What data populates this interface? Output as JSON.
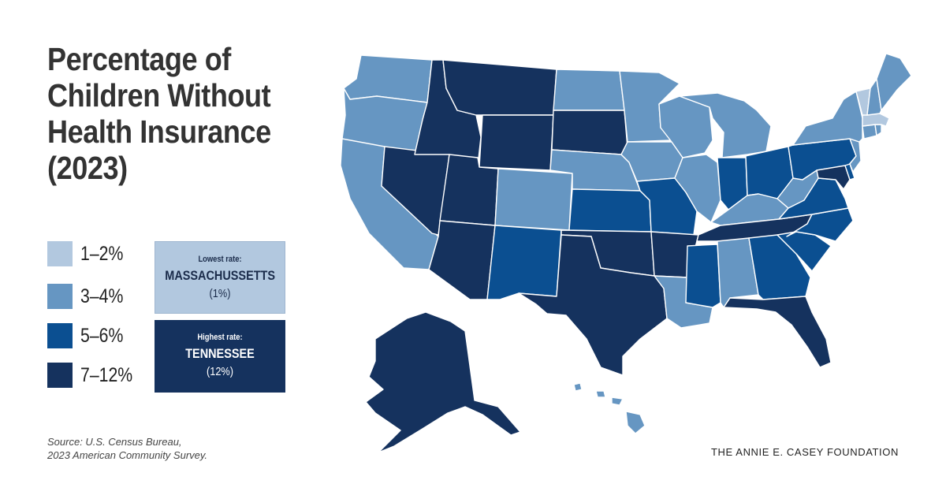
{
  "title": "Percentage of Children Without Health Insurance (2023)",
  "colors": {
    "1-2": "#b2c8df",
    "3-4": "#6696c2",
    "5-6": "#0b4f91",
    "7-12": "#15325e"
  },
  "legend": [
    {
      "label": "1–2%",
      "color": "#b2c8df"
    },
    {
      "label": "3–4%",
      "color": "#6696c2"
    },
    {
      "label": "5–6%",
      "color": "#0b4f91"
    },
    {
      "label": "7–12%",
      "color": "#15325e"
    }
  ],
  "lowest": {
    "caption": "Lowest rate:",
    "state": "MASSACHUSSETTS",
    "value": "(1%)"
  },
  "highest": {
    "caption": "Highest rate:",
    "state": "TENNESSEE",
    "value": "(12%)"
  },
  "source": {
    "line1": "Source: U.S. Census Bureau,",
    "line2": "2023 American Community Survey."
  },
  "foundation": "THE ANNIE E. CASEY FOUNDATION",
  "states": {
    "WA": "3-4",
    "OR": "3-4",
    "CA": "3-4",
    "NV": "7-12",
    "ID": "7-12",
    "MT": "7-12",
    "WY": "7-12",
    "UT": "7-12",
    "AZ": "7-12",
    "CO": "3-4",
    "NM": "5-6",
    "ND": "3-4",
    "SD": "7-12",
    "NE": "3-4",
    "KS": "5-6",
    "OK": "7-12",
    "TX": "7-12",
    "MN": "3-4",
    "IA": "3-4",
    "MO": "5-6",
    "AR": "7-12",
    "LA": "3-4",
    "WI": "3-4",
    "IL": "3-4",
    "MI": "3-4",
    "IN": "5-6",
    "OH": "5-6",
    "KY": "3-4",
    "TN": "7-12",
    "MS": "5-6",
    "AL": "3-4",
    "GA": "5-6",
    "FL": "7-12",
    "SC": "5-6",
    "NC": "5-6",
    "VA": "5-6",
    "WV": "3-4",
    "PA": "5-6",
    "NY": "3-4",
    "VT": "1-2",
    "NH": "3-4",
    "ME": "3-4",
    "MA": "1-2",
    "RI": "3-4",
    "CT": "3-4",
    "NJ": "3-4",
    "DE": "5-6",
    "MD": "7-12",
    "AK": "7-12",
    "HI": "3-4"
  }
}
